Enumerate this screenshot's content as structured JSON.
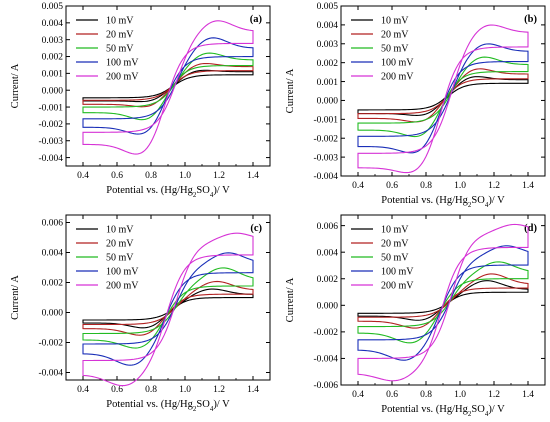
{
  "chart_data": [
    {
      "type": "line",
      "panel_label": "(a)",
      "xlabel": "Potential vs. (Hg/Hg2SO4)/ V",
      "ylabel": "Current/ A",
      "xlim": [
        0.3,
        1.5
      ],
      "ylim": [
        -0.0045,
        0.005
      ],
      "x_ticks": [
        "0.4",
        "0.6",
        "0.8",
        "1.0",
        "1.2",
        "1.4"
      ],
      "y_ticks": [
        "-0.004",
        "-0.003",
        "-0.002",
        "-0.001",
        "0.000",
        "0.001",
        "0.002",
        "0.003",
        "0.004",
        "0.005"
      ],
      "legend_position": "top-left",
      "series": [
        {
          "name": "10 mV",
          "color": "#000000",
          "i_low": -0.00045,
          "i_high": 0.0011,
          "ox_peak": [
            1.05,
            0.0013
          ],
          "red_peak": [
            0.85,
            -0.0007
          ]
        },
        {
          "name": "20 mV",
          "color": "#b22222",
          "i_low": -0.0006,
          "i_high": 0.0014,
          "ox_peak": [
            1.08,
            0.0017
          ],
          "red_peak": [
            0.83,
            -0.001
          ]
        },
        {
          "name": "50 mV",
          "color": "#22bb22",
          "i_low": -0.001,
          "i_high": 0.0018,
          "ox_peak": [
            1.12,
            0.0023
          ],
          "red_peak": [
            0.8,
            -0.0017
          ]
        },
        {
          "name": "100 mV",
          "color": "#1a2fb8",
          "i_low": -0.0017,
          "i_high": 0.0025,
          "ox_peak": [
            1.15,
            0.0032
          ],
          "red_peak": [
            0.78,
            -0.0024
          ]
        },
        {
          "name": "200 mV",
          "color": "#d633d6",
          "i_low": -0.0025,
          "i_high": 0.0035,
          "ox_peak": [
            1.18,
            0.0042
          ],
          "red_peak": [
            0.76,
            -0.0034
          ]
        }
      ]
    },
    {
      "type": "line",
      "panel_label": "(b)",
      "xlabel": "Potential vs. (Hg/Hg2SO4)/ V",
      "ylabel": "Current/ A",
      "xlim": [
        0.3,
        1.5
      ],
      "ylim": [
        -0.004,
        0.005
      ],
      "x_ticks": [
        "0.4",
        "0.6",
        "0.8",
        "1.0",
        "1.2",
        "1.4"
      ],
      "y_ticks": [
        "-0.004",
        "-0.003",
        "-0.002",
        "-0.001",
        "0.000",
        "0.001",
        "0.002",
        "0.003",
        "0.004",
        "0.005"
      ],
      "legend_position": "top-left",
      "series": [
        {
          "name": "10 mV",
          "color": "#000000",
          "i_low": -0.0005,
          "i_high": 0.0011,
          "ox_peak": [
            1.05,
            0.0014
          ],
          "red_peak": [
            0.83,
            -0.0008
          ]
        },
        {
          "name": "20 mV",
          "color": "#b22222",
          "i_low": -0.0007,
          "i_high": 0.0014,
          "ox_peak": [
            1.08,
            0.0018
          ],
          "red_peak": [
            0.81,
            -0.0011
          ]
        },
        {
          "name": "50 mV",
          "color": "#22bb22",
          "i_low": -0.0012,
          "i_high": 0.0019,
          "ox_peak": [
            1.12,
            0.0024
          ],
          "red_peak": [
            0.79,
            -0.0018
          ]
        },
        {
          "name": "100 mV",
          "color": "#1a2fb8",
          "i_low": -0.0019,
          "i_high": 0.0026,
          "ox_peak": [
            1.14,
            0.0031
          ],
          "red_peak": [
            0.77,
            -0.0025
          ]
        },
        {
          "name": "200 mV",
          "color": "#d633d6",
          "i_low": -0.0028,
          "i_high": 0.0036,
          "ox_peak": [
            1.16,
            0.0041
          ],
          "red_peak": [
            0.75,
            -0.0033
          ]
        }
      ]
    },
    {
      "type": "line",
      "panel_label": "(c)",
      "xlabel": "Potential vs. (Hg/Hg2SO4)/ V",
      "ylabel": "Current/ A",
      "xlim": [
        0.3,
        1.5
      ],
      "ylim": [
        -0.0045,
        0.0065
      ],
      "x_ticks": [
        "0.4",
        "0.6",
        "0.8",
        "1.0",
        "1.2",
        "1.4"
      ],
      "y_ticks": [
        "-0.004",
        "-0.002",
        "0.000",
        "0.002",
        "0.004",
        "0.006"
      ],
      "legend_position": "top-left",
      "series": [
        {
          "name": "10 mV",
          "color": "#000000",
          "i_low": -0.0005,
          "i_high": 0.0012,
          "ox_peak": [
            1.15,
            0.0016
          ],
          "red_peak": [
            0.8,
            -0.001
          ]
        },
        {
          "name": "20 mV",
          "color": "#b22222",
          "i_low": -0.0008,
          "i_high": 0.0015,
          "ox_peak": [
            1.18,
            0.0021
          ],
          "red_peak": [
            0.77,
            -0.0014
          ]
        },
        {
          "name": "50 mV",
          "color": "#22bb22",
          "i_low": -0.0014,
          "i_high": 0.0022,
          "ox_peak": [
            1.22,
            0.003
          ],
          "red_peak": [
            0.74,
            -0.0021
          ]
        },
        {
          "name": "100 mV",
          "color": "#1a2fb8",
          "i_low": -0.0021,
          "i_high": 0.0033,
          "ox_peak": [
            1.25,
            0.004
          ],
          "red_peak": [
            0.7,
            -0.003
          ]
        },
        {
          "name": "200 mV",
          "color": "#d633d6",
          "i_low": -0.0032,
          "i_high": 0.0048,
          "ox_peak": [
            1.3,
            0.0053
          ],
          "red_peak": [
            0.65,
            -0.004
          ]
        }
      ]
    },
    {
      "type": "line",
      "panel_label": "(d)",
      "xlabel": "Potential vs. (Hg/Hg2SO4)/ V",
      "ylabel": "Current/ A",
      "xlim": [
        0.3,
        1.5
      ],
      "ylim": [
        -0.006,
        0.0068
      ],
      "x_ticks": [
        "0.4",
        "0.6",
        "0.8",
        "1.0",
        "1.2",
        "1.4"
      ],
      "y_ticks": [
        "-0.006",
        "-0.004",
        "-0.002",
        "0.000",
        "0.002",
        "0.004",
        "0.006"
      ],
      "legend_position": "top-left",
      "series": [
        {
          "name": "10 mV",
          "color": "#000000",
          "i_low": -0.0006,
          "i_high": 0.0012,
          "ox_peak": [
            1.15,
            0.0019
          ],
          "red_peak": [
            0.8,
            -0.0011
          ]
        },
        {
          "name": "20 mV",
          "color": "#b22222",
          "i_low": -0.0009,
          "i_high": 0.0016,
          "ox_peak": [
            1.18,
            0.0024
          ],
          "red_peak": [
            0.77,
            -0.0016
          ]
        },
        {
          "name": "50 mV",
          "color": "#22bb22",
          "i_low": -0.0016,
          "i_high": 0.0025,
          "ox_peak": [
            1.22,
            0.0033
          ],
          "red_peak": [
            0.73,
            -0.0025
          ]
        },
        {
          "name": "100 mV",
          "color": "#1a2fb8",
          "i_low": -0.0026,
          "i_high": 0.0038,
          "ox_peak": [
            1.27,
            0.0045
          ],
          "red_peak": [
            0.69,
            -0.0035
          ]
        },
        {
          "name": "200 mV",
          "color": "#d633d6",
          "i_low": -0.004,
          "i_high": 0.0055,
          "ox_peak": [
            1.32,
            0.0061
          ],
          "red_peak": [
            0.62,
            -0.0046
          ]
        }
      ]
    }
  ]
}
